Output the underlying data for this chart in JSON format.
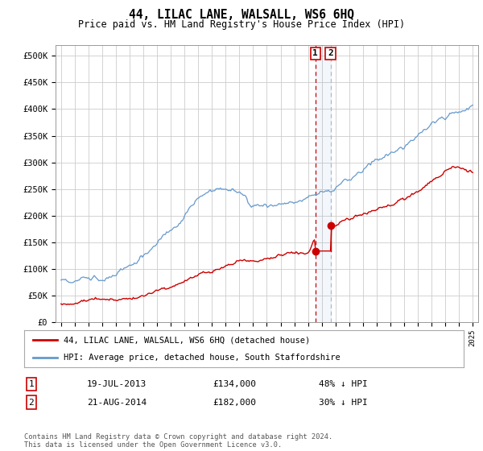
{
  "title": "44, LILAC LANE, WALSALL, WS6 6HQ",
  "subtitle": "Price paid vs. HM Land Registry's House Price Index (HPI)",
  "legend_line1": "44, LILAC LANE, WALSALL, WS6 6HQ (detached house)",
  "legend_line2": "HPI: Average price, detached house, South Staffordshire",
  "sale1_date_str": "19-JUL-2013",
  "sale1_price": 134000,
  "sale2_date_str": "21-AUG-2014",
  "sale2_price": 182000,
  "sale1_year": 2013.54,
  "sale2_year": 2014.64,
  "ylim": [
    0,
    520000
  ],
  "yticks": [
    0,
    50000,
    100000,
    150000,
    200000,
    250000,
    300000,
    350000,
    400000,
    450000,
    500000
  ],
  "ytick_labels": [
    "£0",
    "£50K",
    "£100K",
    "£150K",
    "£200K",
    "£250K",
    "£300K",
    "£350K",
    "£400K",
    "£450K",
    "£500K"
  ],
  "xlim_start": 1994.6,
  "xlim_end": 2025.4,
  "red_color": "#cc0000",
  "blue_color": "#6699cc",
  "grid_color": "#cccccc",
  "background_color": "#ffffff",
  "sale1_amount": "£134,000",
  "sale2_amount": "£182,000",
  "sale1_pct": "48% ↓ HPI",
  "sale2_pct": "30% ↓ HPI",
  "footnote": "Contains HM Land Registry data © Crown copyright and database right 2024.\nThis data is licensed under the Open Government Licence v3.0."
}
